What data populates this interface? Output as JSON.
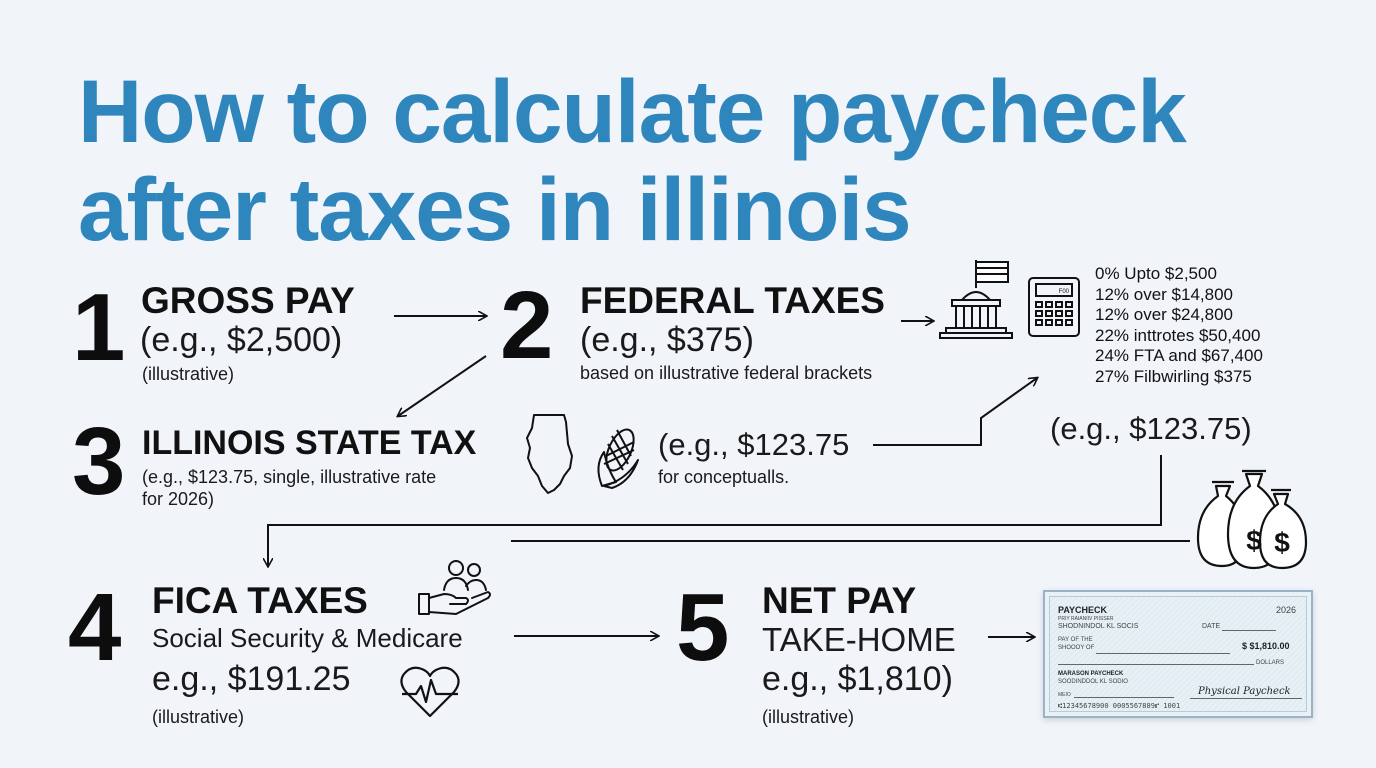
{
  "title": {
    "line1": "How to calculate paycheck",
    "line2": "after taxes in illinois"
  },
  "steps": {
    "s1": {
      "number": "1",
      "heading": "GROSS PAY",
      "amount": "(e.g., $2,500)",
      "note": "(illustrative)"
    },
    "s2": {
      "number": "2",
      "heading": "FEDERAL TAXES",
      "amount": "(e.g., $375)",
      "note": "based on illustrative federal brackets"
    },
    "s3": {
      "number": "3",
      "heading": "ILLINOIS STATE TAX",
      "note_line1": "(e.g., $123.75, single, illustrative rate",
      "note_line2": "for 2026)",
      "mid_amount": "(e.g., $123.75",
      "mid_note": "for conceptualls."
    },
    "s4": {
      "number": "4",
      "heading": "FICA TAXES",
      "subtitle": "Social Security & Medicare",
      "amount": "e.g., $191.25",
      "note": "(illustrative)"
    },
    "s5": {
      "number": "5",
      "heading": "NET PAY",
      "subtitle": "TAKE-HOME",
      "amount": "e.g., $1,810)",
      "note": "(illustrative)"
    }
  },
  "brackets": [
    "0% Upto $2,500",
    "12% over $14,800",
    "12% over $24,800",
    "22% inttrotes $50,400",
    "24% FTA and $67,400",
    "27% Filbwirling $375"
  ],
  "right_amount": "(e.g., $123.75)",
  "calculator_display": "F00",
  "check": {
    "label": "PAYCHECK",
    "year": "2026",
    "addr1": "PRIY RAIANIIV PIISSER",
    "addr2": "SHODNINDOL KL SOCIS",
    "date_label": "DATE",
    "pay_to1": "PAY OF THE",
    "pay_to2": "SHOOOY OF",
    "amount": "$ $1,810.00",
    "dollars_label": "DOLLARS",
    "payer": "MARASON PAYCHECK",
    "payer_addr": "SOODINDDOL KL SODIO",
    "memo_label": "MEIO",
    "signature": "Physical Paycheck",
    "micr": "⑆12345678900 0005567889⑈ 1001"
  },
  "colors": {
    "title": "#2f86bd",
    "background": "#f1f4f9"
  },
  "icons": [
    "capitol-flag-icon",
    "calculator-icon",
    "illinois-map-icon",
    "corn-icon",
    "money-bags-icon",
    "care-hand-people-icon",
    "heart-pulse-icon",
    "paycheck-image"
  ]
}
